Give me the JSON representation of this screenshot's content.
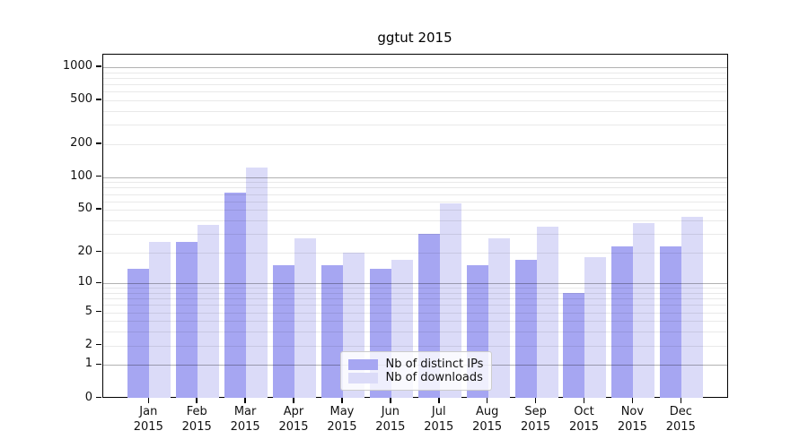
{
  "chart_data": {
    "type": "bar",
    "title": "ggtut 2015",
    "categories": [
      "Jan",
      "Feb",
      "Mar",
      "Apr",
      "May",
      "Jun",
      "Jul",
      "Aug",
      "Sep",
      "Oct",
      "Nov",
      "Dec"
    ],
    "year_label": "2015",
    "series": [
      {
        "name": "Nb of distinct IPs",
        "color": "#a6a6f2",
        "values": [
          14,
          25,
          72,
          15,
          15,
          14,
          30,
          15,
          17,
          8,
          23,
          23
        ]
      },
      {
        "name": "Nb of downloads",
        "color": "#dbdbf8",
        "values": [
          25,
          36,
          122,
          27,
          20,
          17,
          57,
          27,
          35,
          18,
          38,
          43
        ]
      }
    ],
    "xlabel": "",
    "ylabel": "",
    "yscale": "log1p",
    "ylim": [
      0,
      1300
    ],
    "yticks": [
      0,
      1,
      2,
      5,
      10,
      20,
      50,
      100,
      200,
      500,
      1000
    ],
    "grid": {
      "major_lines": [
        1,
        10,
        100,
        1000
      ],
      "minor_multiples": [
        2,
        3,
        4,
        5,
        6,
        7,
        8,
        9
      ],
      "minor_decades": [
        1,
        10,
        100
      ],
      "major_color": "rgba(0,0,0,0.30)",
      "minor_color": "rgba(0,0,0,0.085)"
    },
    "legend": {
      "location": "inside-bottom-center"
    }
  }
}
